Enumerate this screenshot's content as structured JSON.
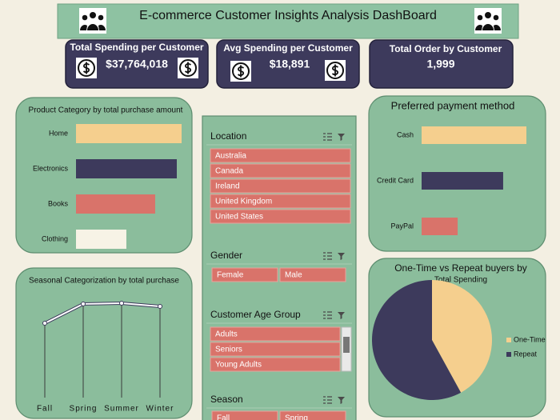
{
  "header": {
    "title": "E-commerce Customer Insights Analysis DashBoard"
  },
  "kpis": [
    {
      "title": "Total Spending per Customer",
      "value": "$37,764,018"
    },
    {
      "title": "Avg Spending per Customer",
      "value": "$18,891"
    },
    {
      "title": "Total Order by Customer",
      "value": "1,999"
    }
  ],
  "chart_data": [
    {
      "type": "hbar",
      "title": "Product Category by total purchase amount",
      "categories": [
        "Home",
        "Electronics",
        "Books",
        "Clothing"
      ],
      "values": [
        11870000,
        11330000,
        8900000,
        5660000
      ],
      "colors": [
        "#f5cf8e",
        "#3d3a5c",
        "#d9736a",
        "#f7f3e6"
      ]
    },
    {
      "type": "line",
      "title": "Seasonal Categorization by total purchase",
      "categories": [
        "Fall",
        "Spring",
        "Summer",
        "Winter"
      ],
      "values": [
        7940000,
        10000000,
        10080000,
        9740000
      ],
      "color": "#3d3a5c"
    },
    {
      "type": "hbar",
      "title": "Preferred payment method",
      "categories": [
        "Cash",
        "Credit Card",
        "PayPal"
      ],
      "values": [
        942,
        733,
        324
      ],
      "colors": [
        "#f5cf8e",
        "#3d3a5c",
        "#d9736a"
      ]
    },
    {
      "type": "pie",
      "title": "One-Time vs Repeat buyers by",
      "subtitle": "Total Spending",
      "categories": [
        "One-Time",
        "Repeat"
      ],
      "values": [
        42,
        58
      ],
      "colors": [
        "#f5cf8e",
        "#3d3a5c"
      ],
      "legend": "right"
    }
  ],
  "slicers": [
    {
      "title": "Location",
      "items": [
        "Australia",
        "Canada",
        "Ireland",
        "United Kingdom",
        "United States"
      ]
    },
    {
      "title": "Gender",
      "items": [
        "Female",
        "Male"
      ]
    },
    {
      "title": "Customer Age Group",
      "items": [
        "Adults",
        "Seniors",
        "Young Adults"
      ]
    },
    {
      "title": "Season",
      "items": [
        "Fall",
        "Spring"
      ]
    }
  ]
}
